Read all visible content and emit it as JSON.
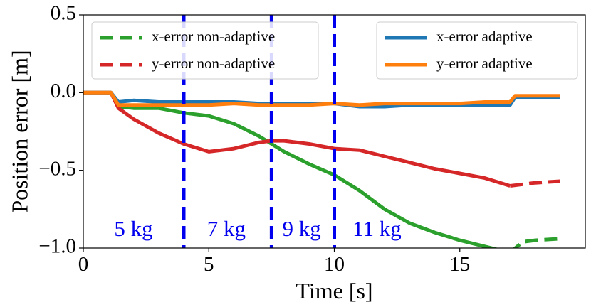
{
  "chart_data": {
    "type": "line",
    "title": "",
    "xlabel": "Time [s]",
    "ylabel": "Position error [m]",
    "xlim": [
      0,
      20
    ],
    "ylim": [
      -1.0,
      0.5
    ],
    "xticks": [
      0,
      5,
      10,
      15
    ],
    "xtick_labels": [
      "0",
      "5",
      "10",
      "15"
    ],
    "yticks": [
      0.5,
      0.0,
      -0.5,
      -1.0
    ],
    "ytick_labels": [
      "0.5",
      "0.0",
      "−0.5",
      "−1.0"
    ],
    "grid": false,
    "series": [
      {
        "name": "x-error non-adaptive",
        "color": "#2ca02c",
        "style": "solid then dashed",
        "dash_from": 17.0,
        "x": [
          0,
          1,
          1.1,
          1.4,
          2,
          3,
          4,
          5,
          6,
          7,
          8,
          9,
          10,
          11,
          12,
          13,
          14,
          15,
          16,
          16.5,
          17.0,
          17.5,
          18,
          19
        ],
        "y": [
          0,
          0,
          0,
          -0.09,
          -0.1,
          -0.1,
          -0.13,
          -0.15,
          -0.2,
          -0.28,
          -0.38,
          -0.46,
          -0.53,
          -0.63,
          -0.75,
          -0.84,
          -0.9,
          -0.95,
          -0.99,
          -1.01,
          -1.03,
          -0.96,
          -0.95,
          -0.94
        ]
      },
      {
        "name": "y-error non-adaptive",
        "color": "#d62728",
        "style": "solid then dashed",
        "dash_from": 17.0,
        "x": [
          0,
          1,
          1.1,
          1.4,
          2,
          3,
          4,
          5,
          6,
          7,
          7.5,
          8,
          9,
          10,
          11,
          12,
          13,
          14,
          15,
          16,
          17,
          18,
          19
        ],
        "y": [
          0,
          0,
          0,
          -0.1,
          -0.17,
          -0.26,
          -0.33,
          -0.38,
          -0.36,
          -0.32,
          -0.31,
          -0.31,
          -0.33,
          -0.36,
          -0.37,
          -0.41,
          -0.45,
          -0.49,
          -0.52,
          -0.55,
          -0.6,
          -0.58,
          -0.57
        ]
      },
      {
        "name": "x-error adaptive",
        "color": "#1f77b4",
        "style": "solid",
        "x": [
          0,
          1,
          1.1,
          1.4,
          2,
          3,
          4,
          5,
          6,
          7,
          8,
          9,
          10,
          11,
          12,
          13,
          14,
          15,
          16,
          17,
          17.2,
          18,
          19
        ],
        "y": [
          0,
          0,
          0,
          -0.06,
          -0.05,
          -0.06,
          -0.06,
          -0.06,
          -0.06,
          -0.07,
          -0.07,
          -0.07,
          -0.07,
          -0.09,
          -0.09,
          -0.08,
          -0.08,
          -0.08,
          -0.08,
          -0.08,
          -0.03,
          -0.03,
          -0.03
        ]
      },
      {
        "name": "y-error adaptive",
        "color": "#ff7f0e",
        "style": "solid",
        "x": [
          0,
          1,
          1.1,
          1.4,
          2,
          3,
          4,
          5,
          6,
          7,
          8,
          9,
          10,
          11,
          12,
          13,
          14,
          15,
          16,
          17,
          17.2,
          18,
          19
        ],
        "y": [
          0,
          0,
          0,
          -0.08,
          -0.08,
          -0.08,
          -0.08,
          -0.08,
          -0.07,
          -0.08,
          -0.08,
          -0.08,
          -0.07,
          -0.08,
          -0.07,
          -0.07,
          -0.07,
          -0.07,
          -0.06,
          -0.06,
          -0.02,
          -0.02,
          -0.02
        ]
      }
    ],
    "vertical_lines": {
      "color": "#0000ee",
      "style": "dashed",
      "x": [
        4,
        7.5,
        10
      ]
    },
    "annotations": [
      {
        "text": "5 kg",
        "x": 2.0,
        "y": -0.89
      },
      {
        "text": "7 kg",
        "x": 5.7,
        "y": -0.89
      },
      {
        "text": "9 kg",
        "x": 8.7,
        "y": -0.89
      },
      {
        "text": "11 kg",
        "x": 11.7,
        "y": -0.89
      }
    ],
    "legends": [
      {
        "placement": "top-left",
        "entries": [
          "x-error non-adaptive",
          "y-error non-adaptive"
        ]
      },
      {
        "placement": "top-right",
        "entries": [
          "x-error adaptive",
          "y-error adaptive"
        ]
      }
    ]
  }
}
